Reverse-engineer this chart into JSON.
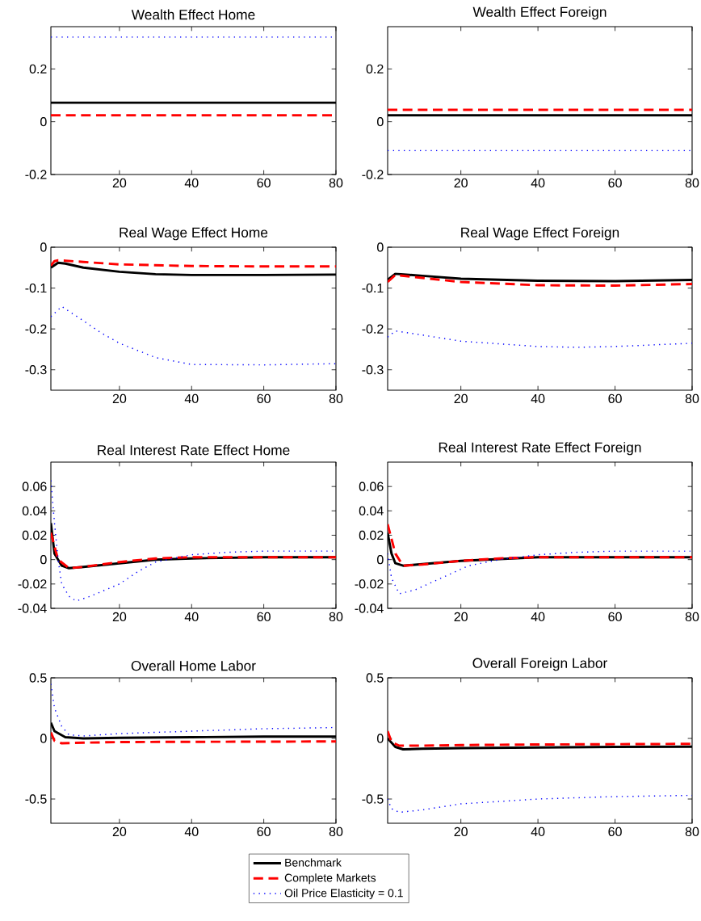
{
  "chart_data": [
    {
      "type": "line",
      "title": "Wealth Effect Home",
      "xlim": [
        1,
        80
      ],
      "xticks": [
        20,
        40,
        60,
        80
      ],
      "ylim": [
        -0.2,
        0.36
      ],
      "yticks": [
        -0.2,
        0,
        0.2
      ],
      "series": [
        {
          "color": "#000000",
          "line_style": "solid",
          "x": [
            1,
            80
          ],
          "values": [
            0.072,
            0.072
          ]
        },
        {
          "color": "#ff0000",
          "line_style": "dashed",
          "x": [
            1,
            80
          ],
          "values": [
            0.024,
            0.024
          ]
        },
        {
          "color": "#0000ff",
          "line_style": "dotted",
          "x": [
            1,
            80
          ],
          "values": [
            0.32,
            0.32
          ]
        }
      ]
    },
    {
      "type": "line",
      "title": "Wealth Effect Foreign",
      "xlim": [
        1,
        80
      ],
      "xticks": [
        20,
        40,
        60,
        80
      ],
      "ylim": [
        -0.2,
        0.36
      ],
      "yticks": [
        -0.2,
        0,
        0.2
      ],
      "series": [
        {
          "color": "#000000",
          "line_style": "solid",
          "x": [
            1,
            80
          ],
          "values": [
            0.024,
            0.024
          ]
        },
        {
          "color": "#ff0000",
          "line_style": "dashed",
          "x": [
            1,
            80
          ],
          "values": [
            0.045,
            0.045
          ]
        },
        {
          "color": "#0000ff",
          "line_style": "dotted",
          "x": [
            1,
            80
          ],
          "values": [
            -0.11,
            -0.11
          ]
        }
      ]
    },
    {
      "type": "line",
      "title": "Real Wage Effect Home",
      "xlim": [
        1,
        80
      ],
      "xticks": [
        20,
        40,
        60,
        80
      ],
      "ylim": [
        -0.35,
        0
      ],
      "yticks": [
        -0.3,
        -0.2,
        -0.1,
        0
      ],
      "series": [
        {
          "color": "#000000",
          "line_style": "solid",
          "x": [
            1,
            3,
            5,
            10,
            20,
            30,
            40,
            60,
            80
          ],
          "values": [
            -0.05,
            -0.038,
            -0.04,
            -0.05,
            -0.06,
            -0.066,
            -0.068,
            -0.068,
            -0.067
          ]
        },
        {
          "color": "#ff0000",
          "line_style": "dashed",
          "x": [
            1,
            2,
            3,
            5,
            10,
            20,
            40,
            60,
            80
          ],
          "values": [
            -0.045,
            -0.034,
            -0.032,
            -0.033,
            -0.036,
            -0.042,
            -0.046,
            -0.047,
            -0.047
          ]
        },
        {
          "color": "#0000ff",
          "line_style": "dotted",
          "x": [
            1,
            4,
            10,
            15,
            20,
            30,
            40,
            60,
            80
          ],
          "values": [
            -0.17,
            -0.145,
            -0.18,
            -0.21,
            -0.235,
            -0.27,
            -0.287,
            -0.288,
            -0.285
          ]
        }
      ]
    },
    {
      "type": "line",
      "title": "Real Wage Effect Foreign",
      "xlim": [
        1,
        80
      ],
      "xticks": [
        20,
        40,
        60,
        80
      ],
      "ylim": [
        -0.35,
        0
      ],
      "yticks": [
        -0.3,
        -0.2,
        -0.1,
        0
      ],
      "series": [
        {
          "color": "#000000",
          "line_style": "solid",
          "x": [
            1,
            3,
            10,
            20,
            40,
            60,
            80
          ],
          "values": [
            -0.08,
            -0.065,
            -0.07,
            -0.077,
            -0.082,
            -0.083,
            -0.08
          ]
        },
        {
          "color": "#ff0000",
          "line_style": "dashed",
          "x": [
            1,
            3,
            10,
            20,
            40,
            60,
            80
          ],
          "values": [
            -0.085,
            -0.068,
            -0.075,
            -0.085,
            -0.093,
            -0.094,
            -0.09
          ]
        },
        {
          "color": "#0000ff",
          "line_style": "dotted",
          "x": [
            1,
            3,
            10,
            20,
            40,
            50,
            60,
            80
          ],
          "values": [
            -0.22,
            -0.205,
            -0.215,
            -0.23,
            -0.243,
            -0.245,
            -0.243,
            -0.235
          ]
        }
      ]
    },
    {
      "type": "line",
      "title": "Real Interest Rate Effect Home",
      "xlim": [
        1,
        80
      ],
      "xticks": [
        20,
        40,
        60,
        80
      ],
      "ylim": [
        -0.04,
        0.08
      ],
      "yticks": [
        -0.04,
        -0.02,
        0,
        0.02,
        0.04,
        0.06
      ],
      "series": [
        {
          "color": "#000000",
          "line_style": "solid",
          "x": [
            1,
            2,
            4,
            6,
            10,
            20,
            30,
            40,
            60,
            80
          ],
          "values": [
            0.03,
            0.005,
            -0.005,
            -0.007,
            -0.006,
            -0.003,
            0,
            0.001,
            0.002,
            0.002
          ]
        },
        {
          "color": "#ff0000",
          "line_style": "dashed",
          "x": [
            1,
            3,
            6,
            10,
            20,
            30,
            40,
            60,
            80
          ],
          "values": [
            0.022,
            0,
            -0.007,
            -0.006,
            -0.002,
            0.001,
            0.002,
            0.002,
            0.002
          ]
        },
        {
          "color": "#0000ff",
          "line_style": "dotted",
          "x": [
            1,
            2,
            3,
            4,
            6,
            8,
            12,
            20,
            25,
            30,
            40,
            50,
            60,
            80
          ],
          "values": [
            0.065,
            0.03,
            0,
            -0.02,
            -0.03,
            -0.034,
            -0.03,
            -0.02,
            -0.01,
            -0.002,
            0.004,
            0.006,
            0.007,
            0.007
          ]
        }
      ]
    },
    {
      "type": "line",
      "title": "Real Interest Rate Effect Foreign",
      "xlim": [
        1,
        80
      ],
      "xticks": [
        20,
        40,
        60,
        80
      ],
      "ylim": [
        -0.04,
        0.08
      ],
      "yticks": [
        -0.04,
        -0.02,
        0,
        0.02,
        0.04,
        0.06
      ],
      "series": [
        {
          "color": "#000000",
          "line_style": "solid",
          "x": [
            1,
            2,
            3,
            5,
            20,
            40,
            60,
            80
          ],
          "values": [
            0.022,
            0.005,
            -0.003,
            -0.005,
            -0.001,
            0.002,
            0.002,
            0.002
          ]
        },
        {
          "color": "#ff0000",
          "line_style": "dashed",
          "x": [
            1,
            3,
            5,
            10,
            20,
            30,
            40,
            60,
            80
          ],
          "values": [
            0.029,
            0.005,
            -0.005,
            -0.004,
            -0.001,
            0.001,
            0.002,
            0.002,
            0.002
          ]
        },
        {
          "color": "#0000ff",
          "line_style": "dotted",
          "x": [
            1,
            2,
            4,
            8,
            15,
            22,
            30,
            40,
            50,
            60,
            80
          ],
          "values": [
            0.005,
            -0.015,
            -0.028,
            -0.025,
            -0.015,
            -0.005,
            0,
            0.004,
            0.006,
            0.007,
            0.007
          ]
        }
      ]
    },
    {
      "type": "line",
      "title": "Overall Home Labor",
      "xlim": [
        1,
        80
      ],
      "xticks": [
        20,
        40,
        60,
        80
      ],
      "ylim": [
        -0.7,
        0.5
      ],
      "yticks": [
        -0.5,
        0,
        0.5
      ],
      "series": [
        {
          "color": "#000000",
          "line_style": "solid",
          "x": [
            1,
            2,
            5,
            10,
            20,
            40,
            60,
            80
          ],
          "values": [
            0.13,
            0.06,
            0.01,
            0,
            0.005,
            0.01,
            0.015,
            0.015
          ]
        },
        {
          "color": "#ff0000",
          "line_style": "dashed",
          "x": [
            1,
            2,
            4,
            10,
            20,
            40,
            80
          ],
          "values": [
            0.05,
            -0.02,
            -0.04,
            -0.035,
            -0.03,
            -0.028,
            -0.025
          ]
        },
        {
          "color": "#0000ff",
          "line_style": "dotted",
          "x": [
            1,
            2,
            4,
            6,
            10,
            20,
            40,
            60,
            80
          ],
          "values": [
            0.45,
            0.25,
            0.1,
            0.03,
            0.02,
            0.04,
            0.06,
            0.08,
            0.09
          ]
        }
      ]
    },
    {
      "type": "line",
      "title": "Overall Foreign Labor",
      "xlim": [
        1,
        80
      ],
      "xticks": [
        20,
        40,
        60,
        80
      ],
      "ylim": [
        -0.7,
        0.5
      ],
      "yticks": [
        -0.5,
        0,
        0.5
      ],
      "legend": "bottom",
      "series": [
        {
          "name": "Benchmark",
          "color": "#000000",
          "line_style": "solid",
          "x": [
            1,
            3,
            5,
            10,
            20,
            40,
            60,
            80
          ],
          "values": [
            0,
            -0.07,
            -0.09,
            -0.085,
            -0.08,
            -0.075,
            -0.07,
            -0.068
          ]
        },
        {
          "name": "Complete Markets",
          "color": "#ff0000",
          "line_style": "dashed",
          "x": [
            1,
            2,
            4,
            10,
            20,
            40,
            80
          ],
          "values": [
            0.06,
            -0.03,
            -0.06,
            -0.06,
            -0.055,
            -0.05,
            -0.045
          ]
        },
        {
          "name": "Oil Price Elasticity = 0.1",
          "color": "#0000ff",
          "line_style": "dotted",
          "x": [
            1,
            2,
            4,
            10,
            20,
            40,
            60,
            80
          ],
          "values": [
            -0.5,
            -0.58,
            -0.61,
            -0.59,
            -0.54,
            -0.5,
            -0.48,
            -0.47
          ]
        }
      ]
    }
  ]
}
